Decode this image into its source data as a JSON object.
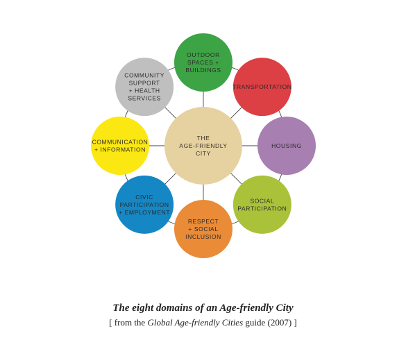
{
  "center": {
    "lines": [
      "THE",
      "AGE-FRIENDLY",
      "CITY"
    ],
    "color": "#e6d1a1"
  },
  "domains": [
    {
      "id": "outdoor",
      "lines": [
        "OUTDOOR",
        "SPACES +",
        "BUILDINGS"
      ],
      "color": "#3ca444"
    },
    {
      "id": "transportation",
      "lines": [
        "TRANSPORTATION"
      ],
      "color": "#dc3f44"
    },
    {
      "id": "housing",
      "lines": [
        "HOUSING"
      ],
      "color": "#a77fb1"
    },
    {
      "id": "social-participation",
      "lines": [
        "SOCIAL",
        "PARTICIPATION"
      ],
      "color": "#a9c23a"
    },
    {
      "id": "respect",
      "lines": [
        "RESPECT",
        "+ SOCIAL",
        "INCLUSION"
      ],
      "color": "#ea8b38"
    },
    {
      "id": "civic",
      "lines": [
        "CIVIC",
        "PARTICIPATION",
        "+ EMPLOYMENT"
      ],
      "color": "#1587c5"
    },
    {
      "id": "communication",
      "lines": [
        "COMMUNICATION",
        "+ INFORMATION"
      ],
      "color": "#fbe712"
    },
    {
      "id": "community",
      "lines": [
        "COMMUNITY",
        "SUPPORT",
        "+ HEALTH",
        "SERVICES"
      ],
      "color": "#bfbfbf"
    }
  ],
  "line_color": "#444444",
  "caption": {
    "title": "The eight domains of an Age-friendly City",
    "source_prefix": "[ from the ",
    "source_italic": "Global Age-friendly Cities",
    "source_suffix": " guide (2007) ]"
  }
}
